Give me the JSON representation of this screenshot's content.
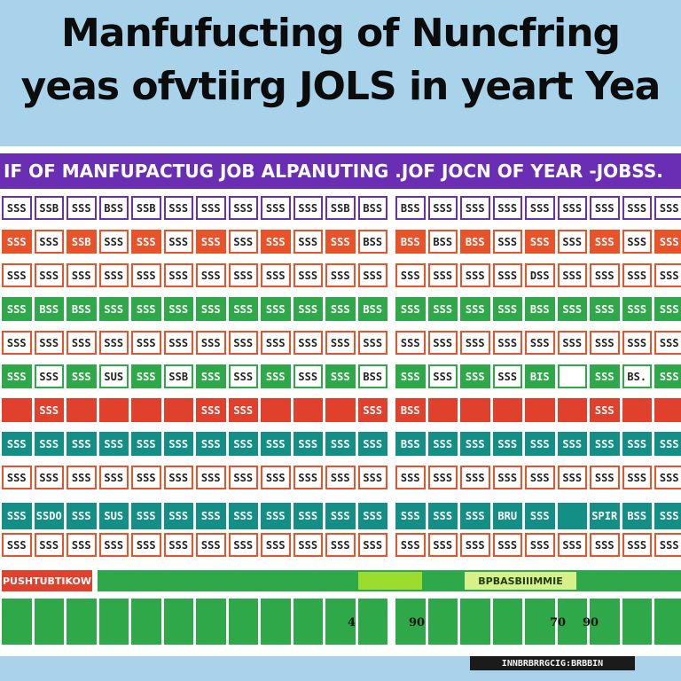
{
  "title": {
    "line1": "Manfufucting  of Nuncfring",
    "line2": "yeas ofvtiirg JOLS in yeart Yea"
  },
  "banner": "IF OF MANFUPACTUG JOB ALPANUTING .JOF JOCN OF YEAR -JOBSS.",
  "colors": {
    "background": "#a9d3ea",
    "purple": "#6a2eb4",
    "orange": "#e9532a",
    "red": "#e0412c",
    "green": "#2fa84a",
    "teal": "#138f86",
    "lime": "#9bdc2e",
    "white": "#ffffff"
  },
  "grid_rows": [
    {
      "color": "purple",
      "style": "outline",
      "cells": [
        "SSS",
        "SSB",
        "SSS",
        "BSS",
        "SSB",
        "SSS",
        "SSS",
        "SSS",
        "SSS",
        "SSS",
        "SSB",
        "BSS",
        "BSS",
        "SSS",
        "SSS",
        "SSS",
        "SSS",
        "SSS",
        "SSS",
        "SSS",
        "SSS"
      ]
    },
    {
      "color": "orange",
      "style": "mixed",
      "cells": [
        "SSS",
        "SSS",
        "SSB",
        "SSS",
        "SSS",
        "SSS",
        "SSS",
        "SSS",
        "SSS",
        "SSS",
        "SSS",
        "BSS",
        "BSS",
        "BSS",
        "BSS",
        "SSS",
        "SSS",
        "SSS",
        "SSS",
        "SSS",
        "SSS"
      ]
    },
    {
      "color": "orange",
      "style": "outline",
      "cells": [
        "SSS",
        "SSS",
        "SSS",
        "SSS",
        "SSS",
        "SSS",
        "SSS",
        "SSS",
        "SSS",
        "SSS",
        "SSS",
        "SSS",
        "SSS",
        "SSS",
        "SSS",
        "SSS",
        "DSS",
        "SSS",
        "SSS",
        "SSS",
        "SSS"
      ]
    },
    {
      "color": "green",
      "style": "solid",
      "cells": [
        "SSS",
        "BSS",
        "BSS",
        "SSS",
        "SSS",
        "SSS",
        "SSS",
        "SSS",
        "SSS",
        "SSS",
        "SSS",
        "BSS",
        "SSS",
        "SSS",
        "SSS",
        "SSS",
        "BSS",
        "SSS",
        "SSS",
        "SSS",
        "SSS"
      ]
    },
    {
      "color": "orange",
      "style": "outline",
      "cells": [
        "SSS",
        "SSS",
        "SSS",
        "SSS",
        "SSS",
        "SSS",
        "SSS",
        "SSS",
        "SSS",
        "SSS",
        "SSS",
        "SSS",
        "SSS",
        "SSS",
        "SSS",
        "SSS",
        "SSS",
        "SSS",
        "SSS",
        "SSS",
        "SSS"
      ]
    },
    {
      "color": "green",
      "style": "mixed",
      "cells": [
        "SSS",
        "SSS",
        "SSS",
        "SUS",
        "SSS",
        "SSB",
        "SSS",
        "SSS",
        "SSS",
        "SSS",
        "SSS",
        "BSS",
        "SSS",
        "SSS",
        "SSS",
        "SSS",
        "BIS",
        "",
        "SSS",
        "BS.",
        "SSS"
      ]
    },
    {
      "color": "red",
      "style": "solid",
      "cells": [
        "",
        "SSS",
        "",
        "",
        "",
        "",
        "SSS",
        "SSS",
        "",
        "",
        "",
        "SSS",
        "BSS",
        "",
        "",
        "",
        "",
        "",
        "SSS",
        "",
        ""
      ]
    },
    {
      "color": "teal",
      "style": "solid",
      "cells": [
        "SSS",
        "SSS",
        "SSS",
        "SSS",
        "SSS",
        "SSS",
        "SSS",
        "SSS",
        "SSS",
        "SSS",
        "SSS",
        "SSS",
        "BSS",
        "SSS",
        "SSS",
        "SSS",
        "SSS",
        "SSS",
        "SSS",
        "SSS",
        "SSS"
      ]
    },
    {
      "color": "orange",
      "style": "outline",
      "cells": [
        "SSS",
        "SSS",
        "SSS",
        "SSS",
        "SSS",
        "SSS",
        "SSS",
        "SSS",
        "SSS",
        "SSS",
        "SSS",
        "SSS",
        "SSS",
        "SSS",
        "SSS",
        "SSS",
        "SSS",
        "SSS",
        "SSS",
        "SSS",
        "SSS"
      ]
    },
    {
      "color": "teal",
      "style": "double",
      "cells": [
        "SSS",
        "SSDO",
        "SSS",
        "SUS",
        "SSS",
        "SSS",
        "SSS",
        "SSS",
        "SSS",
        "SSS",
        "SSS",
        "SSS",
        "SSS",
        "SSS",
        "SSS",
        "BRU",
        "SSS",
        "",
        "SPIR",
        "BSS",
        "SSS"
      ]
    },
    {
      "color": "orange",
      "style": "outline",
      "cells": [
        "SSS",
        "SSS",
        "SSS",
        "SSS",
        "SSS",
        "SSS",
        "SSS",
        "SSS",
        "SSS",
        "SSS",
        "SSS",
        "SSS",
        "SSS",
        "SSS",
        "SSS",
        "SSS",
        "SSS",
        "SSS",
        "SSS",
        "SSS",
        "SSS"
      ]
    }
  ],
  "bottom": {
    "red_label": "PUSHTUBTIKOW",
    "mid_label": "",
    "right_label": "BPBASBIIIMMIE",
    "numbers": [
      "4",
      "90",
      "70",
      "90"
    ],
    "footer_tag": "INNBRBRRGCIG:BRBBIN"
  }
}
